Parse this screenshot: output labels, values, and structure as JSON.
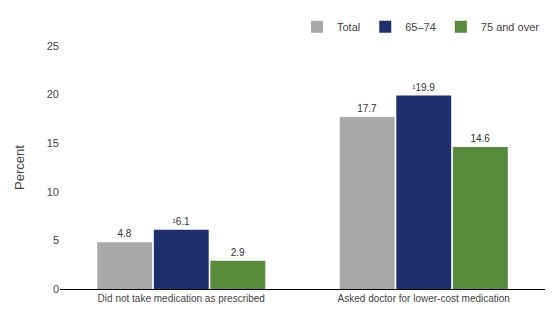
{
  "chart_data": {
    "type": "bar",
    "categories": [
      "Did not take medication as prescribed",
      "Asked doctor for lower-cost medication"
    ],
    "series": [
      {
        "name": "Total",
        "color": "#a9a9a9",
        "values": [
          4.8,
          17.7
        ],
        "value_labels": [
          "4.8",
          "17.7"
        ]
      },
      {
        "name": "65–74",
        "color": "#1e2f6e",
        "values": [
          6.1,
          19.9
        ],
        "value_labels": [
          "¹6.1",
          "¹19.9"
        ]
      },
      {
        "name": "75 and over",
        "color": "#5a8a3c",
        "values": [
          2.9,
          14.6
        ],
        "value_labels": [
          "2.9",
          "14.6"
        ]
      }
    ],
    "ylabel": "Percent",
    "ylim": [
      0,
      25
    ],
    "yticks": [
      0,
      5,
      10,
      15,
      20,
      25
    ],
    "grid": false,
    "legend": "top right",
    "data_labels": true
  }
}
